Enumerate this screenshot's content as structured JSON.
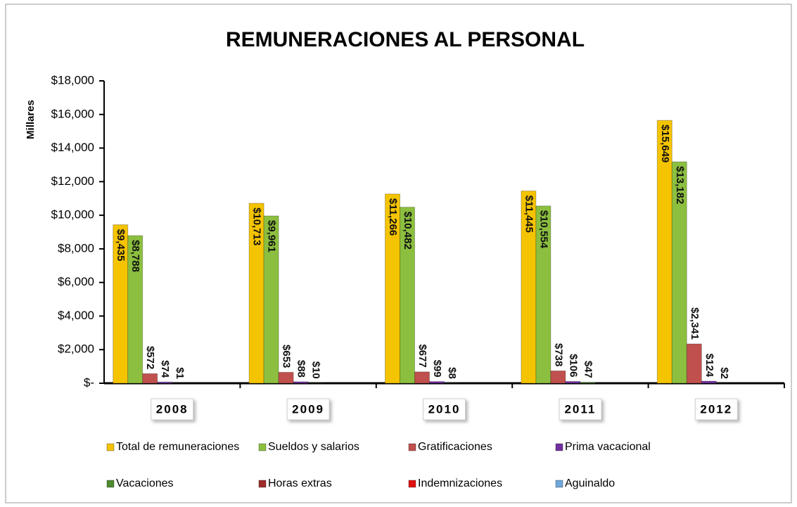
{
  "chart_data": {
    "type": "bar",
    "title": "REMUNERACIONES AL PERSONAL",
    "y_axis_label": "Millares",
    "categories": [
      "2008",
      "2009",
      "2010",
      "2011",
      "2012"
    ],
    "series": [
      {
        "name": "Total de remuneraciones",
        "color": "#f5c400",
        "values": [
          9435,
          10713,
          11266,
          11445,
          15649
        ],
        "value_labels": [
          "$9,435",
          "$10,713",
          "$11,266",
          "$11,445",
          "$15,649"
        ]
      },
      {
        "name": "Sueldos y salarios",
        "color": "#8cbf3f",
        "values": [
          8788,
          9961,
          10482,
          10554,
          13182
        ],
        "value_labels": [
          "$8,788",
          "$9,961",
          "$10,482",
          "$10,554",
          "$13,182"
        ]
      },
      {
        "name": "Gratificaciones",
        "color": "#c0504d",
        "values": [
          572,
          653,
          677,
          738,
          2341
        ],
        "value_labels": [
          "$572",
          "$653",
          "$677",
          "$738",
          "$2,341"
        ]
      },
      {
        "name": "Prima vacacional",
        "color": "#7030a0",
        "values": [
          74,
          88,
          99,
          106,
          124
        ],
        "value_labels": [
          "$74",
          "$88",
          "$99",
          "$106",
          "$124"
        ]
      },
      {
        "name": "Vacaciones",
        "color": "#4f8a2f",
        "values": [
          1,
          10,
          8,
          47,
          2
        ],
        "value_labels": [
          "$1",
          "$10",
          "$8",
          "$47",
          "$2"
        ]
      },
      {
        "name": "Horas extras",
        "color": "#a02b2b",
        "values": [
          null,
          null,
          null,
          null,
          null
        ]
      },
      {
        "name": "Indemnizaciones",
        "color": "#e01010",
        "values": [
          null,
          null,
          null,
          null,
          null
        ]
      },
      {
        "name": "Aguinaldo",
        "color": "#6fa8dc",
        "values": [
          null,
          null,
          null,
          null,
          null
        ]
      }
    ],
    "ylim": [
      0,
      18000
    ],
    "yticks": [
      {
        "value": 0,
        "label": "$-"
      },
      {
        "value": 2000,
        "label": "$2,000"
      },
      {
        "value": 4000,
        "label": "$4,000"
      },
      {
        "value": 6000,
        "label": "$6,000"
      },
      {
        "value": 8000,
        "label": "$8,000"
      },
      {
        "value": 10000,
        "label": "$10,000"
      },
      {
        "value": 12000,
        "label": "$12,000"
      },
      {
        "value": 14000,
        "label": "$14,000"
      },
      {
        "value": 16000,
        "label": "$16,000"
      },
      {
        "value": 18000,
        "label": "$18,000"
      }
    ],
    "grid": false,
    "legend": "bottom"
  }
}
